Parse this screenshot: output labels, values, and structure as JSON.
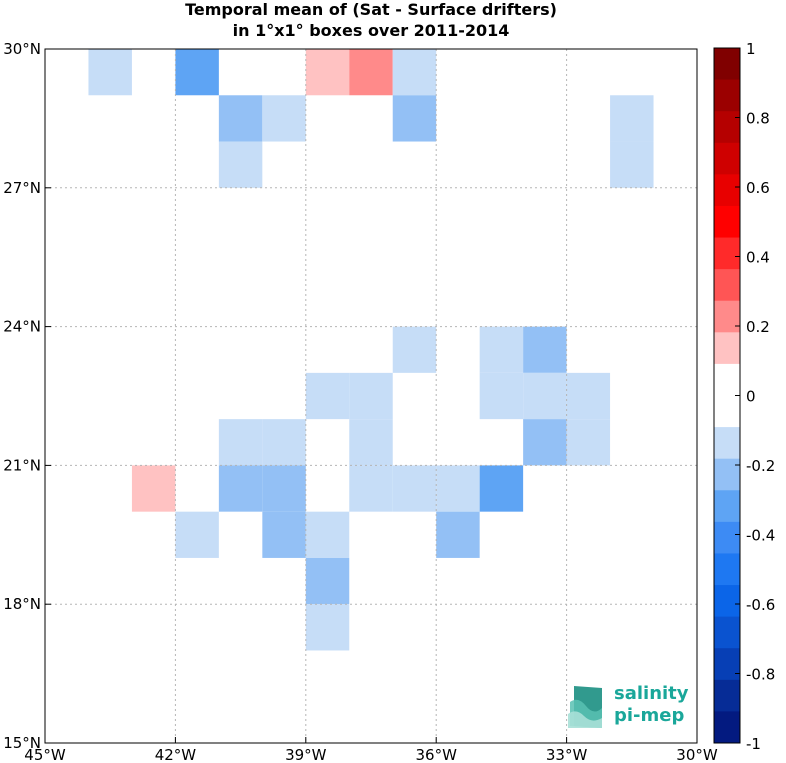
{
  "title_line1": "Temporal mean of (Sat - Surface drifters)",
  "title_line2": "in 1°x1° boxes over 2011-2014",
  "x_ticks": [
    "45°W",
    "42°W",
    "39°W",
    "36°W",
    "33°W",
    "30°W"
  ],
  "x_tick_values": [
    -45,
    -42,
    -39,
    -36,
    -33,
    -30
  ],
  "y_ticks": [
    "15°N",
    "18°N",
    "21°N",
    "24°N",
    "27°N",
    "30°N"
  ],
  "y_tick_values": [
    15,
    18,
    21,
    24,
    27,
    30
  ],
  "colorbar": {
    "labels": [
      "1",
      "0.8",
      "0.6",
      "0.4",
      "0.2",
      "0",
      "-0.2",
      "-0.4",
      "-0.6",
      "-0.8",
      "-1"
    ],
    "values": [
      1,
      0.8,
      0.6,
      0.4,
      0.2,
      0,
      -0.2,
      -0.4,
      -0.6,
      -0.8,
      -1
    ],
    "colors_top_to_bottom": [
      "#800000",
      "#9b0000",
      "#b50000",
      "#cf0000",
      "#e80000",
      "#ff0000",
      "#ff2a2a",
      "#ff5555",
      "#ff8a8a",
      "#ffc2c2",
      "#ffffff",
      "#ffffff",
      "#c6ddf7",
      "#93c0f5",
      "#5ea4f4",
      "#3d8bf4",
      "#1e78f2",
      "#0b65e8",
      "#0a53d0",
      "#073fb5",
      "#062c96",
      "#031a80"
    ]
  },
  "logo": {
    "line1": "salinity",
    "line2": "pi-mep"
  },
  "chart_data": {
    "type": "heatmap",
    "title": "Temporal mean of (Sat - Surface drifters) in 1°x1° boxes over 2011-2014",
    "xlim": [
      -45,
      -30
    ],
    "ylim": [
      15,
      30
    ],
    "cbar_range": [
      -1,
      1
    ],
    "grid": true,
    "cells": [
      {
        "lon": -44,
        "lat": 29,
        "value": -0.15
      },
      {
        "lon": -42,
        "lat": 29,
        "value": -0.35
      },
      {
        "lon": -39,
        "lat": 29,
        "value": 0.15
      },
      {
        "lon": -38,
        "lat": 29,
        "value": 0.25
      },
      {
        "lon": -37,
        "lat": 29,
        "value": -0.15
      },
      {
        "lon": -41,
        "lat": 28,
        "value": -0.25
      },
      {
        "lon": -40,
        "lat": 28,
        "value": -0.15
      },
      {
        "lon": -37,
        "lat": 28,
        "value": -0.25
      },
      {
        "lon": -32,
        "lat": 28,
        "value": -0.15
      },
      {
        "lon": -41,
        "lat": 27,
        "value": -0.15
      },
      {
        "lon": -32,
        "lat": 27,
        "value": -0.15
      },
      {
        "lon": -37,
        "lat": 23,
        "value": -0.15
      },
      {
        "lon": -35,
        "lat": 23,
        "value": -0.15
      },
      {
        "lon": -34,
        "lat": 23,
        "value": -0.25
      },
      {
        "lon": -39,
        "lat": 22,
        "value": -0.15
      },
      {
        "lon": -38,
        "lat": 22,
        "value": -0.15
      },
      {
        "lon": -35,
        "lat": 22,
        "value": -0.15
      },
      {
        "lon": -34,
        "lat": 22,
        "value": -0.15
      },
      {
        "lon": -33,
        "lat": 22,
        "value": -0.15
      },
      {
        "lon": -41,
        "lat": 21,
        "value": -0.15
      },
      {
        "lon": -40,
        "lat": 21,
        "value": -0.15
      },
      {
        "lon": -38,
        "lat": 21,
        "value": -0.15
      },
      {
        "lon": -34,
        "lat": 21,
        "value": -0.25
      },
      {
        "lon": -33,
        "lat": 21,
        "value": -0.15
      },
      {
        "lon": -43,
        "lat": 20,
        "value": 0.15
      },
      {
        "lon": -41,
        "lat": 20,
        "value": -0.25
      },
      {
        "lon": -40,
        "lat": 20,
        "value": -0.25
      },
      {
        "lon": -38,
        "lat": 20,
        "value": -0.15
      },
      {
        "lon": -37,
        "lat": 20,
        "value": -0.15
      },
      {
        "lon": -36,
        "lat": 20,
        "value": -0.15
      },
      {
        "lon": -35,
        "lat": 20,
        "value": -0.35
      },
      {
        "lon": -42,
        "lat": 19,
        "value": -0.15
      },
      {
        "lon": -40,
        "lat": 19,
        "value": -0.25
      },
      {
        "lon": -39,
        "lat": 19,
        "value": -0.15
      },
      {
        "lon": -36,
        "lat": 19,
        "value": -0.25
      },
      {
        "lon": -39,
        "lat": 18,
        "value": -0.25
      },
      {
        "lon": -39,
        "lat": 17,
        "value": -0.15
      }
    ]
  }
}
